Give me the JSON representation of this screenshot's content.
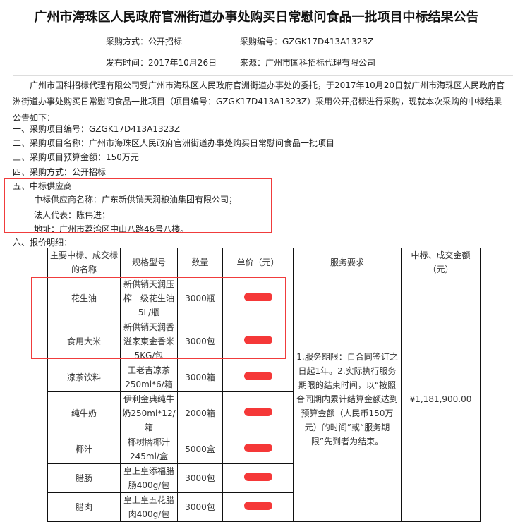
{
  "title": "广州市海珠区人民政府官洲街道办事处购买日常慰问食品一批项目中标结果公告",
  "meta": {
    "method": "采购方式：公开招标",
    "number": "采购编号：GZGK17D413A1323Z",
    "date": "发布时间：2017年10月26日",
    "source": "来源：广州市国科招标代理有限公司"
  },
  "intro": "广州市国科招标代理有限公司受广州市海珠区人民政府官洲街道办事处的委托，于2017年10月20日就广州市海珠区人民政府官洲街道办事处购买日常慰问食品一批项目（项目编号：GZGK17D413A1323Z）采用公开招标进行采购，现就本次采购的中标结果公告如下：",
  "items": [
    "一、采购项目编号：GZGK17D413A1323Z",
    "二、采购项目名称：广州市海珠区人民政府官洲街道办事处购买日常慰问食品一批项目",
    "三、采购项目预算金额：150万元",
    "四、采购方式：公开招标",
    "五、中标供应商",
    "中标供应商名称：广东新供销天润粮油集团有限公司；",
    "法人代表：陈伟进；",
    "地址：广州市荔湾区中山八路46号八楼。",
    "六、报价明细："
  ],
  "table": {
    "headers": [
      "主要中标、成交标的名称",
      "规格型号",
      "数量",
      "单价（元）",
      "服务要求",
      "中标、成交金额（元）"
    ],
    "rows": [
      {
        "name": "花生油",
        "spec": "新供销天润压榨一级花生油5L/瓶",
        "qty": "3000瓶"
      },
      {
        "name": "食用大米",
        "spec": "新供销天润香溢家東金香米5KG/包",
        "qty": "3000包"
      },
      {
        "name": "凉茶饮料",
        "spec": "王老吉凉茶250ml*6/箱",
        "qty": "3000箱"
      },
      {
        "name": "纯牛奶",
        "spec": "伊利金典纯牛奶250ml*12/箱",
        "qty": "2000箱"
      },
      {
        "name": "椰汁",
        "spec": "椰树牌椰汁245ml/盒",
        "qty": "5000盒"
      },
      {
        "name": "腊肠",
        "spec": "皇上皇添福腊肠400g/包",
        "qty": "3000包"
      },
      {
        "name": "腊肉",
        "spec": "皇上皇五花腊肉400g/包",
        "qty": "3000包"
      }
    ],
    "service": "1.服务期限：自合同签订之日起1年。2.实际执行服务期限的结束时间，以“按照合同期内累计结算金额达到预算金额（人民币150万元）的时间”或“服务期限”先到者为结束。",
    "amount": "¥1,181,900.00"
  },
  "colors": {
    "annotation": "#f03c3c",
    "redaction": "#f53838"
  }
}
